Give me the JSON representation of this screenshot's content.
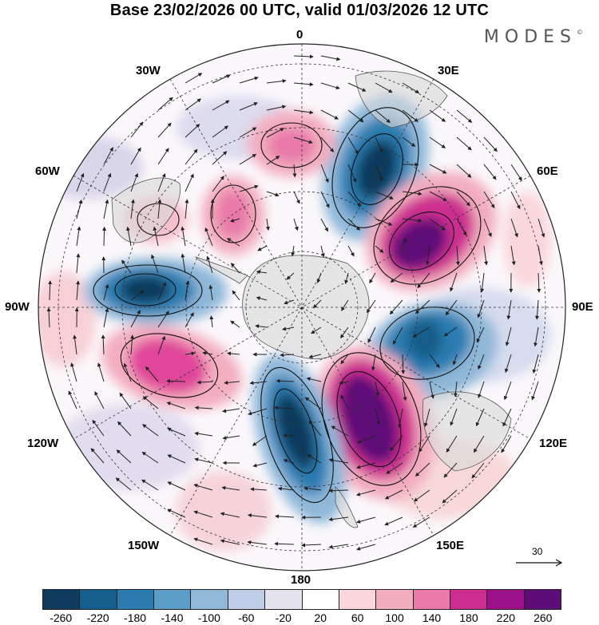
{
  "title": "Base 23/02/2026 00 UTC, valid 01/03/2026 12 UTC",
  "logo": "MODES",
  "logo_mark": "©",
  "longitude_labels": {
    "top": "0",
    "bottom": "180",
    "left": "90W",
    "right": "90E",
    "nw30": "30W",
    "ne30": "30E",
    "nw60": "60W",
    "ne60": "60E",
    "sw120": "120W",
    "se120": "120E",
    "sw150": "150W",
    "se150": "150E"
  },
  "reference_vector": {
    "value": "30"
  },
  "colorbar": {
    "colors": [
      "#0f3b5c",
      "#155d8a",
      "#2b7bb0",
      "#5a9ec8",
      "#8fb8d9",
      "#bfcde6",
      "#e6e3f0",
      "#ffffff",
      "#f9d7dc",
      "#f3aec0",
      "#e879a8",
      "#cc2d8f",
      "#9a118a",
      "#5e0d78"
    ],
    "labels": [
      "-260",
      "-220",
      "-180",
      "-140",
      "-100",
      "-60",
      "-20",
      "20",
      "60",
      "100",
      "140",
      "180",
      "220",
      "260"
    ]
  },
  "anomalies": [
    {
      "id": "neg-south-atlantic",
      "color": "#1f5f8c"
    },
    {
      "id": "pos-south-indian",
      "color": "#7a1882"
    },
    {
      "id": "neg-southeast-indian",
      "color": "#2b6d99"
    },
    {
      "id": "pos-south-of-australia",
      "color": "#7a1882"
    },
    {
      "id": "neg-south-pacific",
      "color": "#1f5f8c"
    },
    {
      "id": "neg-southeast-pacific",
      "color": "#1f5f8c"
    },
    {
      "id": "pos-central-pacific",
      "color": "#d85a9b"
    },
    {
      "id": "pos-west-atlantic",
      "color": "#e07aaa"
    },
    {
      "id": "pos-south-america",
      "color": "#e07aaa"
    }
  ]
}
